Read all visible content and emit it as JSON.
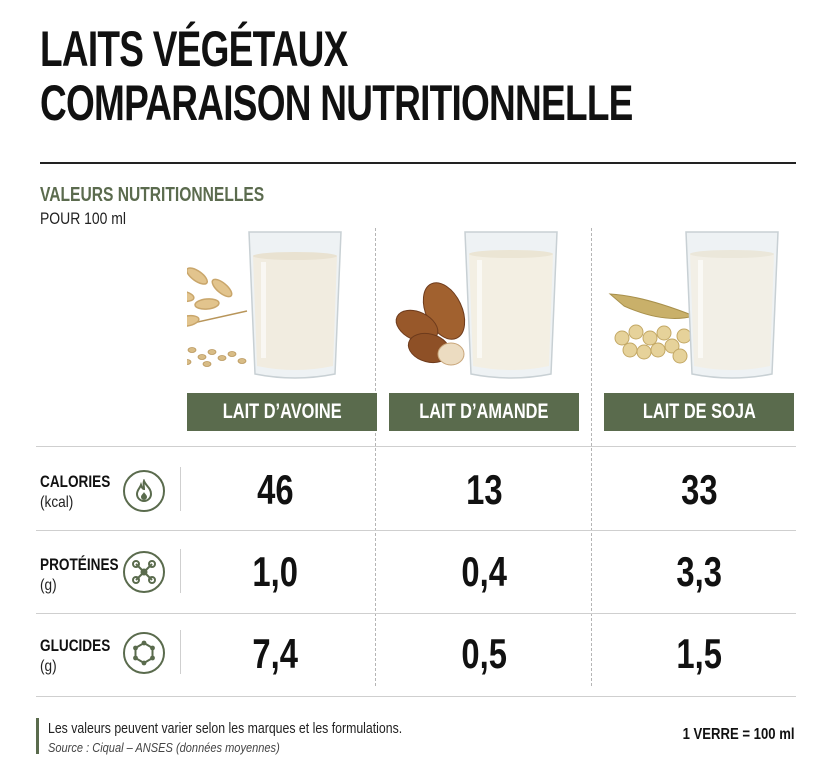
{
  "title": {
    "line1": "LAITS VÉGÉTAUX",
    "line2": "COMPARAISON NUTRITIONNELLE"
  },
  "section": {
    "label": "VALEURS NUTRITIONNELLES",
    "sub": "POUR 100 ml"
  },
  "products": [
    {
      "name": "LAIT D’AVOINE",
      "icon": "oat-glass-icon"
    },
    {
      "name": "LAIT D’AMANDE",
      "icon": "almond-glass-icon"
    },
    {
      "name": "LAIT DE SOJA",
      "icon": "soy-glass-icon"
    }
  ],
  "rows": [
    {
      "name": "CALORIES",
      "unit": "(kcal)",
      "icon": "flame-icon",
      "values": [
        "46",
        "13",
        "33"
      ]
    },
    {
      "name": "PROTÉINES",
      "unit": "(g)",
      "icon": "molecule-icon",
      "values": [
        "1,0",
        "0,4",
        "3,3"
      ]
    },
    {
      "name": "GLUCIDES",
      "unit": "(g)",
      "icon": "hexagon-molecule-icon",
      "values": [
        "7,4",
        "0,5",
        "1,5"
      ]
    }
  ],
  "footer": {
    "note": "Les valeurs peuvent varier selon les marques et les formulations.",
    "source": "Source : Ciqual – ANSES (données moyennes)",
    "serving": "1 VERRE = 100 ml"
  },
  "colors": {
    "accent": "#5a6b4d",
    "label_green": "#5b6b4e",
    "text": "#111111"
  }
}
